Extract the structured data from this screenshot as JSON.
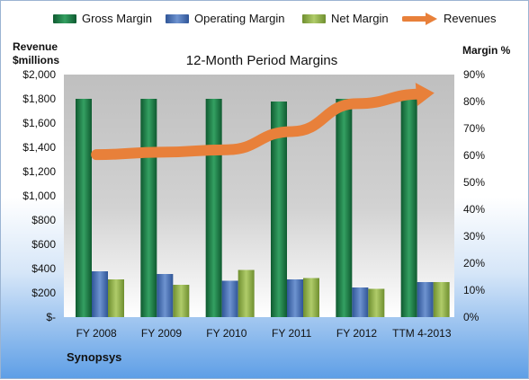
{
  "chart_data": {
    "type": "bar",
    "title": "12-Month Period Margins",
    "categories": [
      "FY 2008",
      "FY 2009",
      "FY 2010",
      "FY 2011",
      "FY 2012",
      "TTM 4-2013"
    ],
    "series": [
      {
        "name": "Gross Margin",
        "axis": "right",
        "color": "#1f7a45",
        "values": [
          81,
          81,
          81,
          80,
          81,
          81
        ]
      },
      {
        "name": "Operating Margin",
        "axis": "right",
        "color": "#4a72b8",
        "values": [
          17,
          16,
          13.5,
          14,
          11,
          13
        ]
      },
      {
        "name": "Net Margin",
        "axis": "right",
        "color": "#8fb04a",
        "values": [
          14,
          12,
          17.5,
          14.5,
          10.5,
          13
        ]
      },
      {
        "name": "Revenues",
        "type": "line",
        "axis": "left",
        "color": "#e8803a",
        "values": [
          1340,
          1360,
          1380,
          1530,
          1760,
          1840
        ]
      }
    ],
    "y_left": {
      "title_line1": "Revenue",
      "title_line2": "$millions",
      "range": [
        0,
        2000
      ],
      "tick_labels": [
        "$-",
        "$200",
        "$400",
        "$600",
        "$800",
        "$1,000",
        "$1,200",
        "$1,400",
        "$1,600",
        "$1,800",
        "$2,000"
      ]
    },
    "y_right": {
      "title": "Margin %",
      "range": [
        0,
        90
      ],
      "tick_labels": [
        "0%",
        "10%",
        "20%",
        "30%",
        "40%",
        "50%",
        "60%",
        "70%",
        "80%",
        "90%"
      ]
    },
    "legend_position": "top",
    "grid": false
  },
  "footer": {
    "company": "Synopsys"
  }
}
